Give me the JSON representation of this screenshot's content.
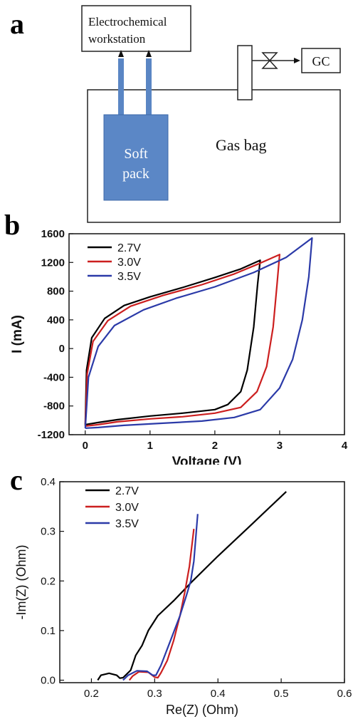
{
  "panel_a": {
    "letter": "a",
    "workstation_line1": "Electrochemical",
    "workstation_line2": "workstation",
    "soft_pack_line1": "Soft",
    "soft_pack_line2": "pack",
    "gas_bag": "Gas bag",
    "gc": "GC"
  },
  "chart_data": [
    {
      "panel": "b",
      "type": "line",
      "xlabel": "Voltage (V)",
      "ylabel": "I (mA)",
      "xlim": [
        -0.25,
        4
      ],
      "ylim": [
        -1200,
        1600
      ],
      "x_ticks": [
        0,
        1,
        2,
        3,
        4
      ],
      "y_ticks": [
        -1200,
        -800,
        -400,
        0,
        400,
        800,
        1200,
        1600
      ],
      "legend_position": "top-left",
      "series": [
        {
          "name": "2.7V",
          "color": "#000000",
          "points": [
            [
              0,
              -1060
            ],
            [
              0.02,
              -300
            ],
            [
              0.1,
              150
            ],
            [
              0.3,
              420
            ],
            [
              0.6,
              600
            ],
            [
              1.0,
              720
            ],
            [
              1.5,
              850
            ],
            [
              2.0,
              990
            ],
            [
              2.4,
              1110
            ],
            [
              2.7,
              1230
            ],
            [
              2.66,
              900
            ],
            [
              2.6,
              300
            ],
            [
              2.5,
              -300
            ],
            [
              2.4,
              -600
            ],
            [
              2.2,
              -780
            ],
            [
              2.0,
              -850
            ],
            [
              1.5,
              -900
            ],
            [
              1.0,
              -940
            ],
            [
              0.5,
              -990
            ],
            [
              0.2,
              -1030
            ],
            [
              0,
              -1060
            ]
          ]
        },
        {
          "name": "3.0V",
          "color": "#cc1f1f",
          "points": [
            [
              0,
              -1080
            ],
            [
              0.03,
              -350
            ],
            [
              0.12,
              100
            ],
            [
              0.35,
              390
            ],
            [
              0.7,
              590
            ],
            [
              1.2,
              740
            ],
            [
              1.8,
              890
            ],
            [
              2.3,
              1040
            ],
            [
              2.7,
              1190
            ],
            [
              3.0,
              1310
            ],
            [
              2.96,
              900
            ],
            [
              2.9,
              300
            ],
            [
              2.8,
              -250
            ],
            [
              2.65,
              -600
            ],
            [
              2.4,
              -820
            ],
            [
              2.0,
              -900
            ],
            [
              1.5,
              -950
            ],
            [
              1.0,
              -980
            ],
            [
              0.5,
              -1020
            ],
            [
              0.2,
              -1060
            ],
            [
              0,
              -1080
            ]
          ]
        },
        {
          "name": "3.5V",
          "color": "#2b3aa8",
          "points": [
            [
              0,
              -1110
            ],
            [
              0.05,
              -400
            ],
            [
              0.2,
              30
            ],
            [
              0.45,
              320
            ],
            [
              0.9,
              540
            ],
            [
              1.4,
              700
            ],
            [
              2.0,
              860
            ],
            [
              2.6,
              1060
            ],
            [
              3.1,
              1270
            ],
            [
              3.5,
              1540
            ],
            [
              3.45,
              1000
            ],
            [
              3.35,
              400
            ],
            [
              3.2,
              -150
            ],
            [
              3.0,
              -550
            ],
            [
              2.7,
              -850
            ],
            [
              2.3,
              -960
            ],
            [
              1.8,
              -1010
            ],
            [
              1.2,
              -1040
            ],
            [
              0.6,
              -1070
            ],
            [
              0.2,
              -1100
            ],
            [
              0,
              -1110
            ]
          ]
        }
      ]
    },
    {
      "panel": "c",
      "type": "line",
      "xlabel": "Re(Z) (Ohm)",
      "ylabel": "-Im(Z) (Ohm)",
      "xlim": [
        0.15,
        0.6
      ],
      "ylim": [
        -0.005,
        0.4
      ],
      "x_ticks": [
        0.2,
        0.3,
        0.4,
        0.5,
        0.6
      ],
      "y_ticks": [
        0.0,
        0.1,
        0.2,
        0.3,
        0.4
      ],
      "legend_position": "top-left",
      "series": [
        {
          "name": "2.7V",
          "color": "#000000",
          "points": [
            [
              0.21,
              0.0
            ],
            [
              0.215,
              0.01
            ],
            [
              0.228,
              0.014
            ],
            [
              0.24,
              0.01
            ],
            [
              0.245,
              0.004
            ],
            [
              0.25,
              0.005
            ],
            [
              0.262,
              0.02
            ],
            [
              0.27,
              0.05
            ],
            [
              0.28,
              0.07
            ],
            [
              0.29,
              0.1
            ],
            [
              0.305,
              0.13
            ],
            [
              0.33,
              0.16
            ],
            [
              0.36,
              0.2
            ],
            [
              0.4,
              0.25
            ],
            [
              0.45,
              0.31
            ],
            [
              0.508,
              0.38
            ]
          ]
        },
        {
          "name": "3.0V",
          "color": "#cc1f1f",
          "points": [
            [
              0.26,
              0.0
            ],
            [
              0.265,
              0.008
            ],
            [
              0.275,
              0.017
            ],
            [
              0.29,
              0.016
            ],
            [
              0.3,
              0.006
            ],
            [
              0.305,
              0.005
            ],
            [
              0.31,
              0.015
            ],
            [
              0.32,
              0.04
            ],
            [
              0.33,
              0.08
            ],
            [
              0.34,
              0.13
            ],
            [
              0.348,
              0.18
            ],
            [
              0.355,
              0.23
            ],
            [
              0.362,
              0.305
            ]
          ]
        },
        {
          "name": "3.5V",
          "color": "#2b3aa8",
          "points": [
            [
              0.25,
              0.0
            ],
            [
              0.258,
              0.01
            ],
            [
              0.272,
              0.019
            ],
            [
              0.288,
              0.018
            ],
            [
              0.297,
              0.01
            ],
            [
              0.302,
              0.01
            ],
            [
              0.31,
              0.03
            ],
            [
              0.325,
              0.08
            ],
            [
              0.34,
              0.13
            ],
            [
              0.35,
              0.17
            ],
            [
              0.357,
              0.2
            ],
            [
              0.362,
              0.24
            ],
            [
              0.368,
              0.335
            ]
          ]
        }
      ]
    }
  ],
  "panel_letters": {
    "b": "b",
    "c": "c"
  }
}
